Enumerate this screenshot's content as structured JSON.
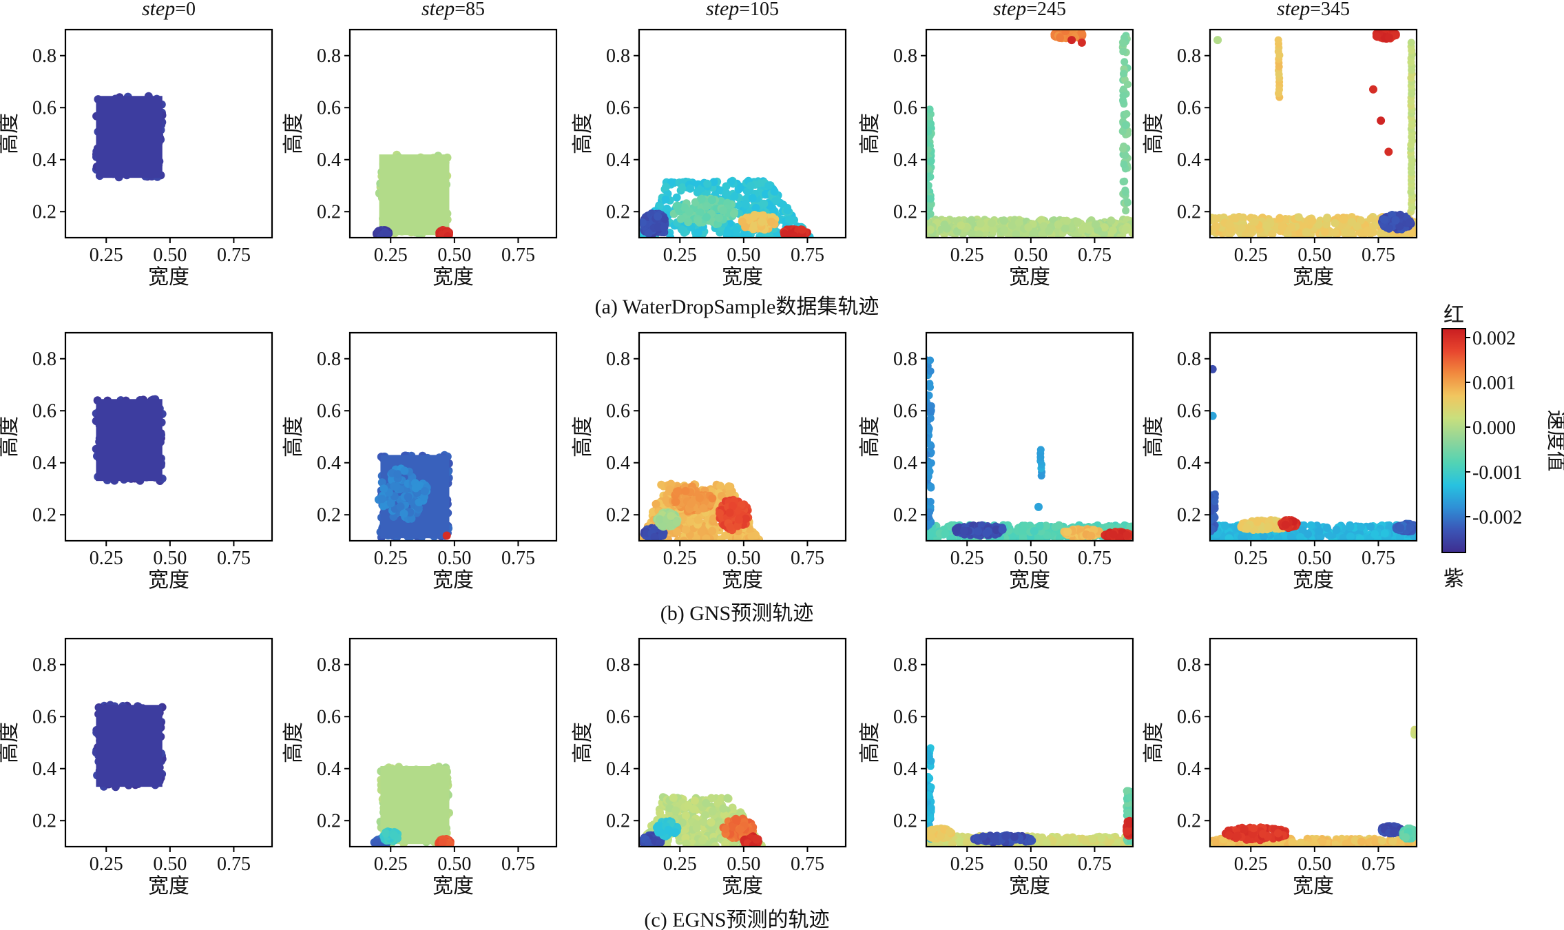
{
  "chart_data": {
    "type": "scatter",
    "column_titles": [
      "step=0",
      "step=85",
      "step=105",
      "step=245",
      "step=345"
    ],
    "title_var": "step",
    "title_values": [
      "=0",
      "=85",
      "=105",
      "=245",
      "=345"
    ],
    "xlabel": "宽度",
    "ylabel": "高度",
    "xticks": [
      "0.25",
      "0.50",
      "0.75"
    ],
    "yticks": [
      "0.2",
      "0.4",
      "0.6",
      "0.8"
    ],
    "xlim": [
      0.09,
      0.9
    ],
    "ylim": [
      0.1,
      0.9
    ],
    "grid": false,
    "colorbar": {
      "label": "速度值",
      "top_text": "红",
      "bottom_text": "紫",
      "ticks": [
        "0.002",
        "0.001",
        "0.000",
        "-0.001",
        "-0.002"
      ],
      "range": [
        -0.0028,
        0.0022
      ],
      "colormap": [
        "#3e2d8f",
        "#3b55b6",
        "#2f8fd6",
        "#27c2e0",
        "#52d3b4",
        "#8fd59a",
        "#c9df7d",
        "#f1c65f",
        "#f18a3e",
        "#e8462e",
        "#c91d21"
      ]
    },
    "rows": [
      {
        "caption": "(a) WaterDropSample数据集轨迹",
        "panels": [
          {
            "step": 0,
            "blobs": [
              {
                "shape": "rect",
                "x0": 0.21,
                "x1": 0.47,
                "y0": 0.33,
                "y1": 0.645,
                "v": -0.0026
              }
            ]
          },
          {
            "step": 85,
            "blobs": [
              {
                "shape": "rect",
                "x0": 0.205,
                "x1": 0.48,
                "y0": 0.11,
                "y1": 0.42,
                "v": 0.0
              },
              {
                "shape": "blob",
                "cx": 0.22,
                "cy": 0.115,
                "w": 0.05,
                "h": 0.03,
                "v": -0.0026
              },
              {
                "shape": "blob",
                "cx": 0.46,
                "cy": 0.115,
                "w": 0.04,
                "h": 0.03,
                "v": 0.002
              }
            ]
          },
          {
            "step": 105,
            "blobs": [
              {
                "shape": "mound",
                "x0": 0.09,
                "x1": 0.76,
                "top": 0.32,
                "v": -0.0012
              },
              {
                "shape": "blob",
                "cx": 0.15,
                "cy": 0.15,
                "w": 0.1,
                "h": 0.09,
                "v": -0.0024
              },
              {
                "shape": "blob",
                "cx": 0.35,
                "cy": 0.2,
                "w": 0.25,
                "h": 0.1,
                "v": -0.0006
              },
              {
                "shape": "blob",
                "cx": 0.56,
                "cy": 0.16,
                "w": 0.14,
                "h": 0.06,
                "v": 0.0007
              },
              {
                "shape": "blob",
                "cx": 0.7,
                "cy": 0.12,
                "w": 0.1,
                "h": 0.03,
                "v": 0.002
              }
            ]
          },
          {
            "step": 245,
            "blobs": [
              {
                "shape": "pool",
                "x0": 0.09,
                "x1": 0.9,
                "ybottom": 0.12,
                "ytop": 0.17,
                "v": 0.0
              },
              {
                "shape": "wall",
                "x": 0.1,
                "y0": 0.18,
                "y1": 0.6,
                "v": -0.0006
              },
              {
                "shape": "wall",
                "x": 0.87,
                "y0": 0.2,
                "y1": 0.88,
                "v": -0.0004
              },
              {
                "shape": "blob",
                "cx": 0.65,
                "cy": 0.88,
                "w": 0.12,
                "h": 0.03,
                "v": 0.0012
              },
              {
                "shape": "dot",
                "cx": 0.7,
                "cy": 0.85,
                "v": 0.002
              },
              {
                "shape": "dot",
                "cx": 0.66,
                "cy": 0.86,
                "v": 0.0021
              }
            ]
          },
          {
            "step": 345,
            "blobs": [
              {
                "shape": "pool",
                "x0": 0.09,
                "x1": 0.9,
                "ybottom": 0.12,
                "ytop": 0.18,
                "v": 0.0006
              },
              {
                "shape": "blob",
                "cx": 0.82,
                "cy": 0.16,
                "w": 0.12,
                "h": 0.06,
                "v": -0.0024
              },
              {
                "shape": "column",
                "x": 0.36,
                "y0": 0.64,
                "y1": 0.86,
                "v": 0.0007
              },
              {
                "shape": "column",
                "x": 0.88,
                "y0": 0.2,
                "y1": 0.85,
                "v": 0.0002
              },
              {
                "shape": "dot",
                "cx": 0.73,
                "cy": 0.67,
                "v": 0.002
              },
              {
                "shape": "dot",
                "cx": 0.76,
                "cy": 0.55,
                "v": 0.0021
              },
              {
                "shape": "dot",
                "cx": 0.79,
                "cy": 0.43,
                "v": 0.002
              },
              {
                "shape": "dot",
                "cx": 0.12,
                "cy": 0.86,
                "v": 0.0
              },
              {
                "shape": "blob",
                "cx": 0.78,
                "cy": 0.88,
                "w": 0.08,
                "h": 0.03,
                "v": 0.002
              }
            ]
          }
        ]
      },
      {
        "caption": "(b) GNS预测轨迹",
        "panels": [
          {
            "step": 0,
            "blobs": [
              {
                "shape": "rect",
                "x0": 0.21,
                "x1": 0.47,
                "y0": 0.33,
                "y1": 0.645,
                "v": -0.0026
              }
            ]
          },
          {
            "step": 85,
            "blobs": [
              {
                "shape": "rect",
                "x0": 0.21,
                "x1": 0.48,
                "y0": 0.11,
                "y1": 0.43,
                "v": -0.0022
              },
              {
                "shape": "blob",
                "cx": 0.3,
                "cy": 0.28,
                "w": 0.2,
                "h": 0.2,
                "v": -0.0019
              },
              {
                "shape": "dot",
                "cx": 0.47,
                "cy": 0.12,
                "v": 0.002
              }
            ]
          },
          {
            "step": 105,
            "blobs": [
              {
                "shape": "mound",
                "x0": 0.1,
                "x1": 0.56,
                "top": 0.32,
                "v": 0.0008
              },
              {
                "shape": "blob",
                "cx": 0.15,
                "cy": 0.13,
                "w": 0.08,
                "h": 0.04,
                "v": -0.0024
              },
              {
                "shape": "blob",
                "cx": 0.2,
                "cy": 0.18,
                "w": 0.08,
                "h": 0.06,
                "v": -0.0001
              },
              {
                "shape": "blob",
                "cx": 0.46,
                "cy": 0.2,
                "w": 0.12,
                "h": 0.12,
                "v": 0.0017
              },
              {
                "shape": "blob",
                "cx": 0.3,
                "cy": 0.26,
                "w": 0.16,
                "h": 0.1,
                "v": 0.0011
              }
            ]
          },
          {
            "step": 245,
            "blobs": [
              {
                "shape": "pool",
                "x0": 0.09,
                "x1": 0.9,
                "ybottom": 0.115,
                "ytop": 0.16,
                "v": -0.0008
              },
              {
                "shape": "blob",
                "cx": 0.3,
                "cy": 0.14,
                "w": 0.2,
                "h": 0.04,
                "v": -0.0024
              },
              {
                "shape": "blob",
                "cx": 0.7,
                "cy": 0.13,
                "w": 0.15,
                "h": 0.03,
                "v": 0.0008
              },
              {
                "shape": "blob",
                "cx": 0.84,
                "cy": 0.12,
                "w": 0.1,
                "h": 0.03,
                "v": 0.002
              },
              {
                "shape": "wall",
                "x": 0.1,
                "y0": 0.15,
                "y1": 0.8,
                "v": -0.0018
              },
              {
                "shape": "column",
                "x": 0.54,
                "y0": 0.35,
                "y1": 0.45,
                "v": -0.0016
              },
              {
                "shape": "dot",
                "cx": 0.53,
                "cy": 0.23,
                "v": -0.0016
              }
            ]
          },
          {
            "step": 345,
            "blobs": [
              {
                "shape": "pool",
                "x0": 0.09,
                "x1": 0.9,
                "ybottom": 0.115,
                "ytop": 0.16,
                "v": -0.0014
              },
              {
                "shape": "blob",
                "cx": 0.3,
                "cy": 0.16,
                "w": 0.2,
                "h": 0.04,
                "v": 0.0006
              },
              {
                "shape": "blob",
                "cx": 0.4,
                "cy": 0.165,
                "w": 0.06,
                "h": 0.03,
                "v": 0.002
              },
              {
                "shape": "blob",
                "cx": 0.86,
                "cy": 0.15,
                "w": 0.08,
                "h": 0.03,
                "v": -0.0022
              },
              {
                "shape": "wall",
                "x": 0.1,
                "y0": 0.13,
                "y1": 0.28,
                "v": -0.0022
              },
              {
                "shape": "dot",
                "cx": 0.1,
                "cy": 0.76,
                "v": -0.0024
              },
              {
                "shape": "dot",
                "cx": 0.1,
                "cy": 0.58,
                "v": -0.0016
              }
            ]
          }
        ]
      },
      {
        "caption": "(c) EGNS预测的轨迹",
        "panels": [
          {
            "step": 0,
            "blobs": [
              {
                "shape": "rect",
                "x0": 0.21,
                "x1": 0.47,
                "y0": 0.33,
                "y1": 0.645,
                "v": -0.0026
              }
            ]
          },
          {
            "step": 85,
            "blobs": [
              {
                "shape": "rect",
                "x0": 0.21,
                "x1": 0.48,
                "y0": 0.11,
                "y1": 0.41,
                "v": 0.0
              },
              {
                "shape": "blob",
                "cx": 0.21,
                "cy": 0.115,
                "w": 0.05,
                "h": 0.03,
                "v": -0.0022
              },
              {
                "shape": "blob",
                "cx": 0.25,
                "cy": 0.14,
                "w": 0.06,
                "h": 0.04,
                "v": -0.001
              },
              {
                "shape": "blob",
                "cx": 0.46,
                "cy": 0.115,
                "w": 0.05,
                "h": 0.03,
                "v": 0.0016
              }
            ]
          },
          {
            "step": 105,
            "blobs": [
              {
                "shape": "mound",
                "x0": 0.1,
                "x1": 0.57,
                "top": 0.29,
                "v": 0.0001
              },
              {
                "shape": "blob",
                "cx": 0.14,
                "cy": 0.125,
                "w": 0.08,
                "h": 0.04,
                "v": -0.0024
              },
              {
                "shape": "blob",
                "cx": 0.2,
                "cy": 0.17,
                "w": 0.08,
                "h": 0.06,
                "v": -0.0012
              },
              {
                "shape": "blob",
                "cx": 0.48,
                "cy": 0.17,
                "w": 0.12,
                "h": 0.08,
                "v": 0.0014
              },
              {
                "shape": "blob",
                "cx": 0.53,
                "cy": 0.12,
                "w": 0.06,
                "h": 0.04,
                "v": 0.002
              }
            ]
          },
          {
            "step": 245,
            "blobs": [
              {
                "shape": "pool",
                "x0": 0.09,
                "x1": 0.9,
                "ybottom": 0.11,
                "ytop": 0.14,
                "v": 0.0003
              },
              {
                "shape": "blob",
                "cx": 0.4,
                "cy": 0.13,
                "w": 0.25,
                "h": 0.03,
                "v": -0.0024
              },
              {
                "shape": "wall",
                "x": 0.1,
                "y0": 0.13,
                "y1": 0.48,
                "v": -0.0014
              },
              {
                "shape": "wall",
                "x": 0.885,
                "y0": 0.12,
                "y1": 0.32,
                "v": -0.0006
              },
              {
                "shape": "blob",
                "cx": 0.885,
                "cy": 0.17,
                "w": 0.02,
                "h": 0.06,
                "v": 0.002
              },
              {
                "shape": "blob",
                "cx": 0.14,
                "cy": 0.15,
                "w": 0.1,
                "h": 0.04,
                "v": 0.0006
              }
            ]
          },
          {
            "step": 345,
            "blobs": [
              {
                "shape": "pool",
                "x0": 0.1,
                "x1": 0.9,
                "ybottom": 0.11,
                "ytop": 0.13,
                "v": 0.0007
              },
              {
                "shape": "blob",
                "cx": 0.27,
                "cy": 0.15,
                "w": 0.25,
                "h": 0.05,
                "v": 0.0019
              },
              {
                "shape": "blob",
                "cx": 0.8,
                "cy": 0.165,
                "w": 0.08,
                "h": 0.03,
                "v": -0.0024
              },
              {
                "shape": "blob",
                "cx": 0.87,
                "cy": 0.15,
                "w": 0.05,
                "h": 0.04,
                "v": -0.0007
              },
              {
                "shape": "column",
                "x": 0.89,
                "y0": 0.53,
                "y1": 0.55,
                "v": 0.0002
              }
            ]
          }
        ]
      }
    ]
  }
}
